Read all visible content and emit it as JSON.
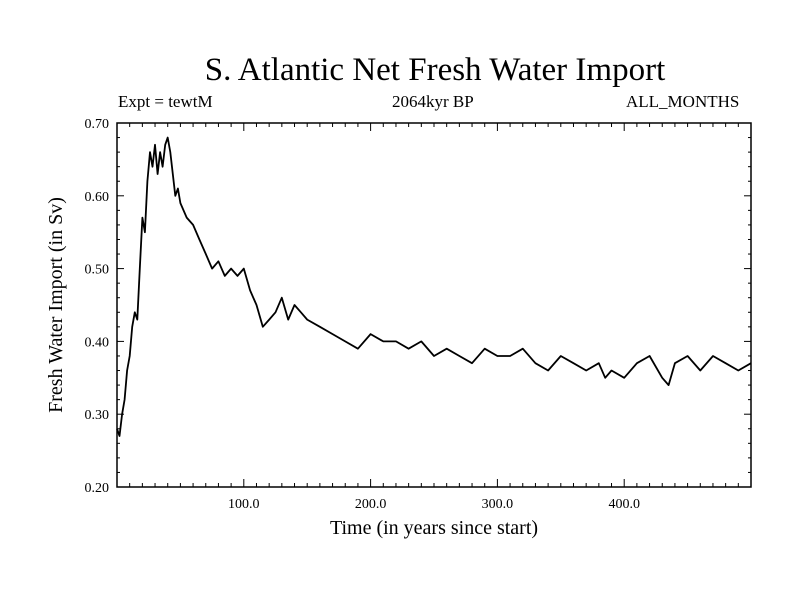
{
  "chart_data": {
    "type": "line",
    "title": "S. Atlantic Net Fresh Water Import",
    "subtitle_left": "Expt = tewtM",
    "subtitle_center": "2064kyr BP",
    "subtitle_right": "ALL_MONTHS",
    "xlabel": "Time (in years since start)",
    "ylabel": "Fresh Water Import (in Sv)",
    "xlim": [
      0,
      500
    ],
    "ylim": [
      0.2,
      0.7
    ],
    "x_ticks": [
      100,
      200,
      300,
      400
    ],
    "x_tick_labels": [
      "100.0",
      "200.0",
      "300.0",
      "400.0"
    ],
    "y_ticks": [
      0.2,
      0.3,
      0.4,
      0.5,
      0.6,
      0.7
    ],
    "y_tick_labels": [
      "0.20",
      "0.30",
      "0.40",
      "0.50",
      "0.60",
      "0.70"
    ],
    "series": [
      {
        "name": "Net Fresh Water Import",
        "color": "#000000",
        "x": [
          0,
          2,
          4,
          6,
          8,
          10,
          12,
          14,
          16,
          18,
          20,
          22,
          24,
          26,
          28,
          30,
          32,
          34,
          36,
          38,
          40,
          42,
          44,
          46,
          48,
          50,
          55,
          60,
          65,
          70,
          75,
          80,
          85,
          90,
          95,
          100,
          105,
          110,
          115,
          120,
          125,
          130,
          135,
          140,
          145,
          150,
          160,
          170,
          180,
          190,
          200,
          210,
          220,
          230,
          240,
          250,
          260,
          270,
          280,
          290,
          300,
          310,
          320,
          330,
          340,
          350,
          360,
          370,
          380,
          385,
          390,
          400,
          410,
          420,
          430,
          435,
          440,
          450,
          460,
          470,
          480,
          490,
          500
        ],
        "values": [
          0.28,
          0.27,
          0.3,
          0.32,
          0.36,
          0.38,
          0.42,
          0.44,
          0.43,
          0.5,
          0.57,
          0.55,
          0.62,
          0.66,
          0.64,
          0.67,
          0.63,
          0.66,
          0.64,
          0.67,
          0.68,
          0.66,
          0.63,
          0.6,
          0.61,
          0.59,
          0.57,
          0.56,
          0.54,
          0.52,
          0.5,
          0.51,
          0.49,
          0.5,
          0.49,
          0.5,
          0.47,
          0.45,
          0.42,
          0.43,
          0.44,
          0.46,
          0.43,
          0.45,
          0.44,
          0.43,
          0.42,
          0.41,
          0.4,
          0.39,
          0.41,
          0.4,
          0.4,
          0.39,
          0.4,
          0.38,
          0.39,
          0.38,
          0.37,
          0.39,
          0.38,
          0.38,
          0.39,
          0.37,
          0.36,
          0.38,
          0.37,
          0.36,
          0.37,
          0.35,
          0.36,
          0.35,
          0.37,
          0.38,
          0.35,
          0.34,
          0.37,
          0.38,
          0.36,
          0.38,
          0.37,
          0.36,
          0.37
        ]
      }
    ],
    "grid": false
  }
}
